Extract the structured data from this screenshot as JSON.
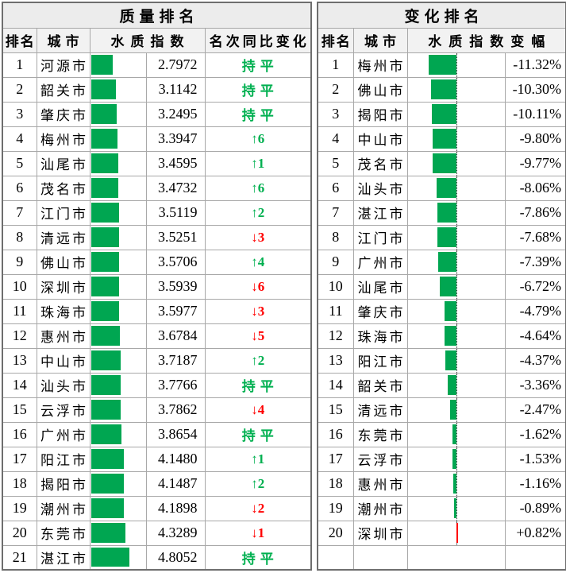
{
  "colors": {
    "bar_green": "#00a651",
    "text_green": "#00b050",
    "down_red": "#ff0000",
    "positive_bar_red": "#ff0000",
    "title_bg": "#ececec",
    "header_bg": "#f2f2f2"
  },
  "quality_table": {
    "title": "质量排名",
    "columns": {
      "rank": "排名",
      "city": "城市",
      "index": "水质指数",
      "change": "名次同比变化"
    },
    "bar_axis_max": 7,
    "rows": [
      {
        "rank": "1",
        "city": "河源市",
        "index": "2.7972",
        "change": "持平",
        "change_type": "flat"
      },
      {
        "rank": "2",
        "city": "韶关市",
        "index": "3.1142",
        "change": "持平",
        "change_type": "flat"
      },
      {
        "rank": "3",
        "city": "肇庆市",
        "index": "3.2495",
        "change": "持平",
        "change_type": "flat"
      },
      {
        "rank": "4",
        "city": "梅州市",
        "index": "3.3947",
        "change": "↑6",
        "change_type": "up"
      },
      {
        "rank": "5",
        "city": "汕尾市",
        "index": "3.4595",
        "change": "↑1",
        "change_type": "up"
      },
      {
        "rank": "6",
        "city": "茂名市",
        "index": "3.4732",
        "change": "↑6",
        "change_type": "up"
      },
      {
        "rank": "7",
        "city": "江门市",
        "index": "3.5119",
        "change": "↑2",
        "change_type": "up"
      },
      {
        "rank": "8",
        "city": "清远市",
        "index": "3.5251",
        "change": "↓3",
        "change_type": "down"
      },
      {
        "rank": "9",
        "city": "佛山市",
        "index": "3.5706",
        "change": "↑4",
        "change_type": "up"
      },
      {
        "rank": "10",
        "city": "深圳市",
        "index": "3.5939",
        "change": "↓6",
        "change_type": "down"
      },
      {
        "rank": "11",
        "city": "珠海市",
        "index": "3.5977",
        "change": "↓3",
        "change_type": "down"
      },
      {
        "rank": "12",
        "city": "惠州市",
        "index": "3.6784",
        "change": "↓5",
        "change_type": "down"
      },
      {
        "rank": "13",
        "city": "中山市",
        "index": "3.7187",
        "change": "↑2",
        "change_type": "up"
      },
      {
        "rank": "14",
        "city": "汕头市",
        "index": "3.7766",
        "change": "持平",
        "change_type": "flat"
      },
      {
        "rank": "15",
        "city": "云浮市",
        "index": "3.7862",
        "change": "↓4",
        "change_type": "down"
      },
      {
        "rank": "16",
        "city": "广州市",
        "index": "3.8654",
        "change": "持平",
        "change_type": "flat"
      },
      {
        "rank": "17",
        "city": "阳江市",
        "index": "4.1480",
        "change": "↑1",
        "change_type": "up"
      },
      {
        "rank": "18",
        "city": "揭阳市",
        "index": "4.1487",
        "change": "↑2",
        "change_type": "up"
      },
      {
        "rank": "19",
        "city": "潮州市",
        "index": "4.1898",
        "change": "↓2",
        "change_type": "down"
      },
      {
        "rank": "20",
        "city": "东莞市",
        "index": "4.3289",
        "change": "↓1",
        "change_type": "down"
      },
      {
        "rank": "21",
        "city": "湛江市",
        "index": "4.8052",
        "change": "持平",
        "change_type": "flat"
      }
    ]
  },
  "change_table": {
    "title": "变化排名",
    "columns": {
      "rank": "排名",
      "city": "城市",
      "delta": "水质指数变幅"
    },
    "bar_axis_max": 20,
    "trailing_empty_rows": 1,
    "rows": [
      {
        "rank": "1",
        "city": "梅州市",
        "delta": "-11.32%",
        "delta_value": -11.32
      },
      {
        "rank": "2",
        "city": "佛山市",
        "delta": "-10.30%",
        "delta_value": -10.3
      },
      {
        "rank": "3",
        "city": "揭阳市",
        "delta": "-10.11%",
        "delta_value": -10.11
      },
      {
        "rank": "4",
        "city": "中山市",
        "delta": "-9.80%",
        "delta_value": -9.8
      },
      {
        "rank": "5",
        "city": "茂名市",
        "delta": "-9.77%",
        "delta_value": -9.77
      },
      {
        "rank": "6",
        "city": "汕头市",
        "delta": "-8.06%",
        "delta_value": -8.06
      },
      {
        "rank": "7",
        "city": "湛江市",
        "delta": "-7.86%",
        "delta_value": -7.86
      },
      {
        "rank": "8",
        "city": "江门市",
        "delta": "-7.68%",
        "delta_value": -7.68
      },
      {
        "rank": "9",
        "city": "广州市",
        "delta": "-7.39%",
        "delta_value": -7.39
      },
      {
        "rank": "10",
        "city": "汕尾市",
        "delta": "-6.72%",
        "delta_value": -6.72
      },
      {
        "rank": "11",
        "city": "肇庆市",
        "delta": "-4.79%",
        "delta_value": -4.79
      },
      {
        "rank": "12",
        "city": "珠海市",
        "delta": "-4.64%",
        "delta_value": -4.64
      },
      {
        "rank": "13",
        "city": "阳江市",
        "delta": "-4.37%",
        "delta_value": -4.37
      },
      {
        "rank": "14",
        "city": "韶关市",
        "delta": "-3.36%",
        "delta_value": -3.36
      },
      {
        "rank": "15",
        "city": "清远市",
        "delta": "-2.47%",
        "delta_value": -2.47
      },
      {
        "rank": "16",
        "city": "东莞市",
        "delta": "-1.62%",
        "delta_value": -1.62
      },
      {
        "rank": "17",
        "city": "云浮市",
        "delta": "-1.53%",
        "delta_value": -1.53
      },
      {
        "rank": "18",
        "city": "惠州市",
        "delta": "-1.16%",
        "delta_value": -1.16
      },
      {
        "rank": "19",
        "city": "潮州市",
        "delta": "-0.89%",
        "delta_value": -0.89
      },
      {
        "rank": "20",
        "city": "深圳市",
        "delta": "+0.82%",
        "delta_value": 0.82
      }
    ]
  },
  "chart_data": [
    {
      "type": "bar",
      "title": "质量排名 — 水质指数",
      "orientation": "horizontal",
      "categories": [
        "河源市",
        "韶关市",
        "肇庆市",
        "梅州市",
        "汕尾市",
        "茂名市",
        "江门市",
        "清远市",
        "佛山市",
        "深圳市",
        "珠海市",
        "惠州市",
        "中山市",
        "汕头市",
        "云浮市",
        "广州市",
        "阳江市",
        "揭阳市",
        "潮州市",
        "东莞市",
        "湛江市"
      ],
      "values": [
        2.7972,
        3.1142,
        3.2495,
        3.3947,
        3.4595,
        3.4732,
        3.5119,
        3.5251,
        3.5706,
        3.5939,
        3.5977,
        3.6784,
        3.7187,
        3.7766,
        3.7862,
        3.8654,
        4.148,
        4.1487,
        4.1898,
        4.3289,
        4.8052
      ],
      "annotations": [
        "持平",
        "持平",
        "持平",
        "↑6",
        "↑1",
        "↑6",
        "↑2",
        "↓3",
        "↑4",
        "↓6",
        "↓3",
        "↓5",
        "↑2",
        "持平",
        "↓4",
        "持平",
        "↑1",
        "↑2",
        "↓2",
        "↓1",
        "持平"
      ],
      "xlabel": "水质指数",
      "ylabel": "城市",
      "xlim": [
        0,
        7
      ],
      "grid": false,
      "bar_color": "#00a651"
    },
    {
      "type": "bar",
      "title": "变化排名 — 水质指数变幅 (%)",
      "orientation": "horizontal",
      "categories": [
        "梅州市",
        "佛山市",
        "揭阳市",
        "中山市",
        "茂名市",
        "汕头市",
        "湛江市",
        "江门市",
        "广州市",
        "汕尾市",
        "肇庆市",
        "珠海市",
        "阳江市",
        "韶关市",
        "清远市",
        "东莞市",
        "云浮市",
        "惠州市",
        "潮州市",
        "深圳市"
      ],
      "values": [
        -11.32,
        -10.3,
        -10.11,
        -9.8,
        -9.77,
        -8.06,
        -7.86,
        -7.68,
        -7.39,
        -6.72,
        -4.79,
        -4.64,
        -4.37,
        -3.36,
        -2.47,
        -1.62,
        -1.53,
        -1.16,
        -0.89,
        0.82
      ],
      "xlabel": "水质指数变幅",
      "ylabel": "城市",
      "xlim": [
        -20,
        20
      ],
      "grid": false,
      "negative_color": "#00a651",
      "positive_color": "#ff0000",
      "zero_axis": "dotted-center"
    }
  ]
}
